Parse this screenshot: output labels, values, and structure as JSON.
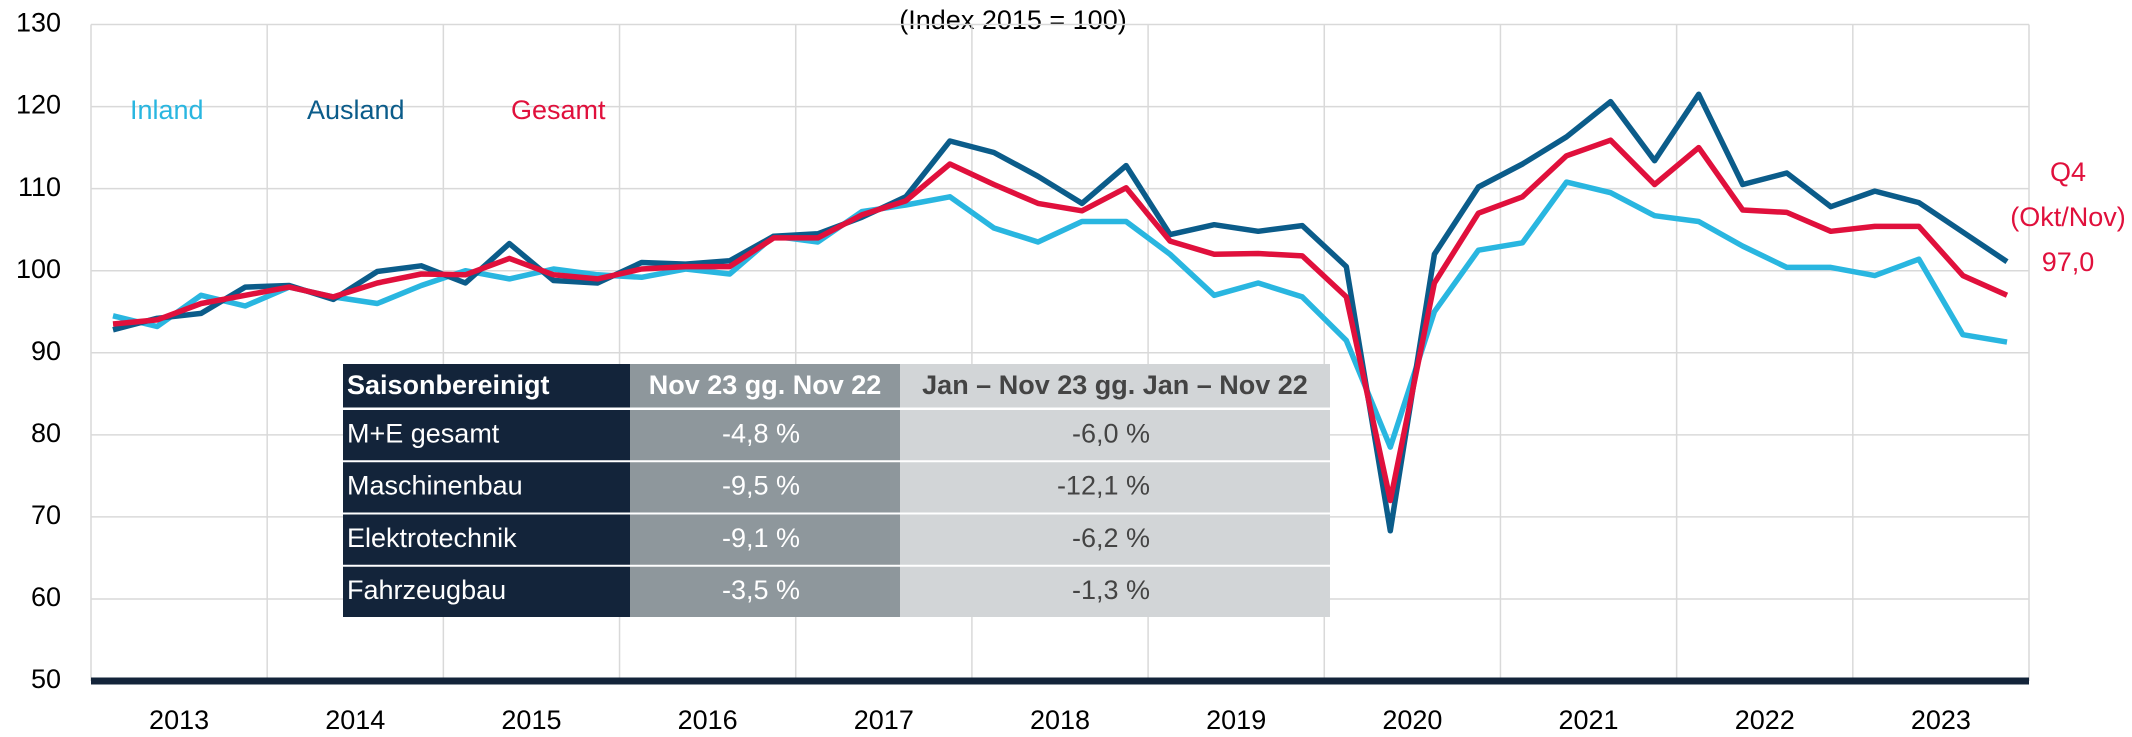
{
  "chart_data": {
    "type": "line",
    "subtitle": "(Index 2015 = 100)",
    "x_labels": [
      "2013",
      "2014",
      "2015",
      "2016",
      "2017",
      "2018",
      "2019",
      "2020",
      "2021",
      "2022",
      "2023"
    ],
    "points_per_label": 4,
    "ylim": [
      50,
      130
    ],
    "yticks": [
      50,
      60,
      70,
      80,
      90,
      100,
      110,
      120,
      130
    ],
    "grid": true,
    "series": [
      {
        "name": "Inland",
        "color": "#29b6e0",
        "values": [
          94.5,
          93.2,
          97,
          95.7,
          98,
          96.8,
          96,
          98.2,
          100,
          99,
          100.2,
          99.5,
          99.2,
          100.2,
          99.6,
          104.2,
          103.5,
          107.2,
          108,
          109,
          105.2,
          103.5,
          106,
          106,
          102,
          97,
          98.5,
          96.8,
          91.5,
          78.5,
          95,
          102.5,
          103.4,
          110.8,
          109.5,
          106.7,
          106,
          103,
          100.4,
          100.4,
          99.4,
          101.4,
          92.2,
          91.3
        ]
      },
      {
        "name": "Ausland",
        "color": "#0b5c8a",
        "values": [
          92.8,
          94.2,
          94.8,
          98,
          98.2,
          96.5,
          99.9,
          100.6,
          98.5,
          103.3,
          98.8,
          98.5,
          101,
          100.8,
          101.2,
          104.2,
          104.5,
          106.5,
          109,
          115.8,
          114.4,
          111.5,
          108.2,
          112.8,
          104.4,
          105.6,
          104.8,
          105.5,
          100.5,
          68.3,
          102,
          110.2,
          113,
          116.3,
          120.6,
          113.4,
          121.5,
          110.5,
          111.9,
          107.8,
          109.7,
          108.3,
          104.7,
          101.1
        ]
      },
      {
        "name": "Gesamt",
        "color": "#e0103c",
        "values": [
          93.5,
          94,
          96,
          97,
          98,
          96.8,
          98.5,
          99.6,
          99.5,
          101.5,
          99.5,
          99,
          100.2,
          100.5,
          100.5,
          104,
          104,
          106.8,
          108.5,
          113,
          110.5,
          108.2,
          107.3,
          110.1,
          103.6,
          102,
          102.1,
          101.8,
          96.8,
          72,
          98.5,
          107,
          109,
          114,
          115.9,
          110.5,
          115,
          107.4,
          107.1,
          104.8,
          105.4,
          105.4,
          99.4,
          97.0
        ]
      }
    ],
    "annotation": {
      "lines": [
        "Q4",
        "(Okt/Nov)",
        "97,0"
      ],
      "color": "#e0103c"
    }
  },
  "table": {
    "header": [
      "Saisonbereinigt",
      "Nov 23 gg. Nov 22",
      "Jan – Nov 23 gg. Jan – Nov 22"
    ],
    "rows": [
      [
        "M+E gesamt",
        "-4,8 %",
        "-6,0 %"
      ],
      [
        "Maschinenbau",
        "-9,5 %",
        "-12,1 %"
      ],
      [
        "Elektrotechnik",
        "-9,1 %",
        "-6,2 %"
      ],
      [
        "Fahrzeugbau",
        "-3,5 %",
        "-1,3 %"
      ]
    ]
  }
}
